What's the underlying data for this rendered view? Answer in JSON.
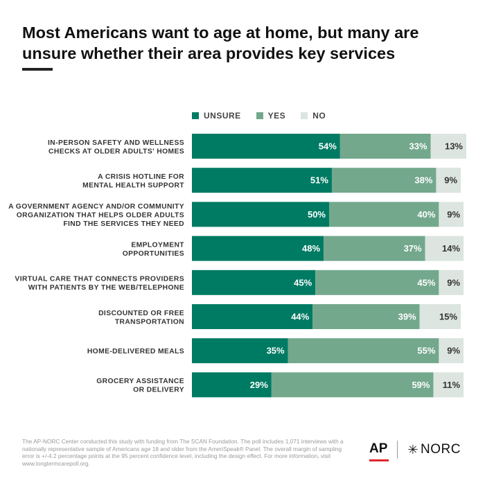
{
  "title": "Most Americans want to age at home, but many are unsure whether their area provides key services",
  "colors": {
    "unsure": "#007B63",
    "yes": "#73A88D",
    "no": "#DCE5DF",
    "text": "#333333"
  },
  "legend": [
    {
      "label": "UNSURE",
      "color": "#007B63"
    },
    {
      "label": "YES",
      "color": "#73A88D"
    },
    {
      "label": "NO",
      "color": "#DCE5DF"
    }
  ],
  "chart_data": {
    "type": "bar",
    "orientation": "horizontal",
    "stacked": true,
    "legend_position": "top",
    "categories": [
      [
        "IN-PERSON SAFETY AND WELLNESS",
        "CHECKS AT OLDER ADULTS' HOMES"
      ],
      [
        "A CRISIS HOTLINE FOR",
        "MENTAL HEALTH SUPPORT"
      ],
      [
        "A GOVERNMENT AGENCY AND/OR COMMUNITY",
        "ORGANIZATION THAT HELPS OLDER ADULTS",
        "FIND THE SERVICES THEY NEED"
      ],
      [
        "EMPLOYMENT",
        "OPPORTUNITIES"
      ],
      [
        "VIRTUAL CARE THAT CONNECTS PROVIDERS",
        "WITH PATIENTS BY THE WEB/TELEPHONE"
      ],
      [
        "DISCOUNTED OR FREE",
        "TRANSPORTATION"
      ],
      [
        "HOME-DELIVERED MEALS"
      ],
      [
        "GROCERY ASSISTANCE",
        "OR DELIVERY"
      ]
    ],
    "series": [
      {
        "name": "UNSURE",
        "values": [
          54,
          51,
          50,
          48,
          45,
          44,
          35,
          29
        ]
      },
      {
        "name": "YES",
        "values": [
          33,
          38,
          40,
          37,
          45,
          39,
          55,
          59
        ]
      },
      {
        "name": "NO",
        "values": [
          13,
          9,
          9,
          14,
          9,
          15,
          9,
          11
        ]
      }
    ],
    "value_suffix": "%"
  },
  "footnote": "The AP-NORC Center conducted this study with funding from The SCAN Foundation. The poll includes 1,071 interviews with a nationally representative sample of Americans age 18 and older from the AmeriSpeak® Panel. The overall margin of sampling error is +/-4.2 percentage points at the 95 percent confidence level, including the design effect. For more information, visit www.longtermcarepoll.org.",
  "logos": {
    "ap": "AP",
    "norc_star": "✳",
    "norc": "NORC"
  }
}
